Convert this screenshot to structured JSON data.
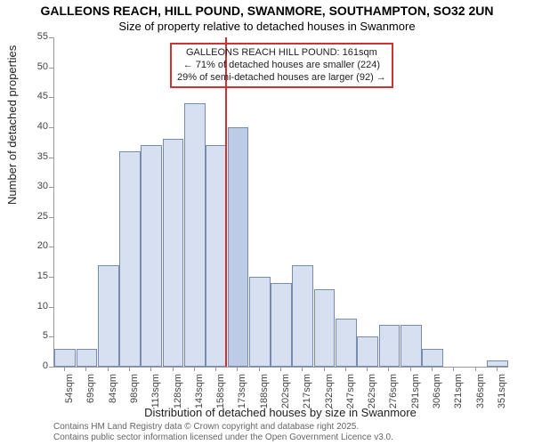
{
  "title_line1": "GALLEONS REACH, HILL POUND, SWANMORE, SOUTHAMPTON, SO32 2UN",
  "title_line2": "Size of property relative to detached houses in Swanmore",
  "ylabel": "Number of detached properties",
  "xlabel": "Distribution of detached houses by size in Swanmore",
  "attribution_line1": "Contains HM Land Registry data © Crown copyright and database right 2025.",
  "attribution_line2": "Contains public sector information licensed under the Open Government Licence v3.0.",
  "chart": {
    "type": "histogram",
    "ylim": [
      0,
      55
    ],
    "ytick_step": 5,
    "bar_fill": "#d6e0f0",
    "bar_stroke": "#7a8bb0",
    "highlight_fill": "#bccce6",
    "background": "#ffffff",
    "axis_color": "#999999",
    "marker_color": "#cc3333",
    "callout_border": "#cc3333",
    "tick_fontsize": 11,
    "label_fontsize": 13,
    "title_fontsize": 14,
    "x_categories": [
      "54sqm",
      "69sqm",
      "84sqm",
      "98sqm",
      "113sqm",
      "128sqm",
      "143sqm",
      "158sqm",
      "173sqm",
      "188sqm",
      "202sqm",
      "217sqm",
      "232sqm",
      "247sqm",
      "262sqm",
      "276sqm",
      "291sqm",
      "306sqm",
      "321sqm",
      "336sqm",
      "351sqm"
    ],
    "values": [
      3,
      3,
      17,
      36,
      37,
      38,
      44,
      37,
      40,
      15,
      14,
      17,
      13,
      8,
      5,
      7,
      7,
      3,
      0,
      0,
      1
    ],
    "highlight_index": 8,
    "marker_position_index": 7.4,
    "callout": {
      "line1": "GALLEONS REACH HILL POUND: 161sqm",
      "line2": "← 71% of detached houses are smaller (224)",
      "line3": "29% of semi-detached houses are larger (92) →"
    }
  }
}
